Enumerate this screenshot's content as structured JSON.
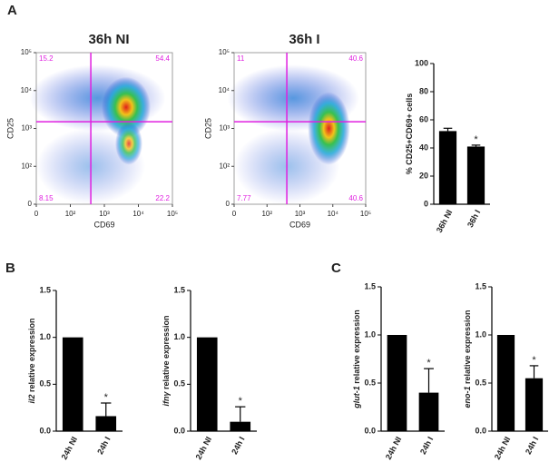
{
  "panel_labels": [
    "A",
    "B",
    "C"
  ],
  "chart_data": [
    {
      "type": "flow",
      "title": "36h NI",
      "xlabel": "CD69",
      "ylabel": "CD25",
      "xlim": [
        0,
        100000
      ],
      "ylim": [
        0,
        100000
      ],
      "xticks": [
        0,
        {
          "value": 100,
          "label": "10²"
        },
        {
          "value": 1000,
          "label": "10³"
        },
        {
          "value": 10000,
          "label": "10⁴"
        },
        {
          "value": 100000,
          "label": "10⁵"
        }
      ],
      "yticks": [
        0,
        {
          "value": 100,
          "label": "10²"
        },
        {
          "value": 1000,
          "label": "10³"
        },
        {
          "value": 10000,
          "label": "10⁴"
        },
        {
          "value": 100000,
          "label": "10⁵"
        }
      ],
      "gates": {
        "x": 400,
        "y": 1500
      },
      "quadrants": [
        15.2,
        54.4,
        8.15,
        22.2
      ],
      "color": "#e020e0"
    },
    {
      "type": "flow",
      "title": "36h  I",
      "xlabel": "CD69",
      "ylabel": "CD25",
      "xlim": [
        0,
        100000
      ],
      "ylim": [
        0,
        100000
      ],
      "xticks": [
        0,
        {
          "value": 100,
          "label": "10²"
        },
        {
          "value": 1000,
          "label": "10³"
        },
        {
          "value": 10000,
          "label": "10⁴"
        },
        {
          "value": 100000,
          "label": "10⁵"
        }
      ],
      "yticks": [
        0,
        {
          "value": 100,
          "label": "10²"
        },
        {
          "value": 1000,
          "label": "10³"
        },
        {
          "value": 10000,
          "label": "10⁴"
        },
        {
          "value": 100000,
          "label": "10⁵"
        }
      ],
      "gates": {
        "x": 400,
        "y": 1500
      },
      "quadrants": [
        11,
        40.6,
        7.77,
        40.6
      ],
      "color": "#e020e0"
    },
    {
      "type": "bar",
      "ylabel": "% CD25+CD69+ cells",
      "categories": [
        "36h NI",
        "36h I"
      ],
      "values": [
        52,
        41
      ],
      "errors": [
        2,
        1
      ],
      "ylim": [
        0,
        100
      ],
      "yticks": [
        0,
        20,
        40,
        60,
        80,
        100
      ],
      "annotation": "*",
      "color": "#000000"
    },
    {
      "type": "bar",
      "ylabel_gene": "il2",
      "ylabel": " relative expression",
      "categories": [
        "24h NI",
        "24h I"
      ],
      "values": [
        1,
        0.16
      ],
      "errors": [
        null,
        0.14
      ],
      "ylim": [
        0,
        1.5
      ],
      "yticks": [
        {
          "value": 0,
          "label": "0.0"
        },
        0.5,
        {
          "value": 1,
          "label": "1.0"
        },
        1.5
      ],
      "annotation": "*",
      "color": "#000000"
    },
    {
      "type": "bar",
      "ylabel_gene": "ifnγ",
      "ylabel": " relative expression",
      "categories": [
        "24h NI",
        "24h I"
      ],
      "values": [
        1,
        0.1
      ],
      "errors": [
        null,
        0.16
      ],
      "ylim": [
        0,
        1.5
      ],
      "yticks": [
        {
          "value": 0,
          "label": "0.0"
        },
        0.5,
        {
          "value": 1,
          "label": "1.0"
        },
        1.5
      ],
      "annotation": "*",
      "color": "#000000"
    },
    {
      "type": "bar",
      "ylabel_gene": "glut-1",
      "ylabel": " relative expression",
      "categories": [
        "24h NI",
        "24h I"
      ],
      "values": [
        1,
        0.4
      ],
      "errors": [
        null,
        0.25
      ],
      "ylim": [
        0,
        1.5
      ],
      "yticks": [
        {
          "value": 0,
          "label": "0.0"
        },
        0.5,
        {
          "value": 1,
          "label": "1.0"
        },
        1.5
      ],
      "annotation": "*",
      "color": "#000000"
    },
    {
      "type": "bar",
      "ylabel_gene": "eno-1",
      "ylabel": " relative expression",
      "categories": [
        "24h NI",
        "24h I"
      ],
      "values": [
        1,
        0.55
      ],
      "errors": [
        null,
        0.13
      ],
      "ylim": [
        0,
        1.5
      ],
      "yticks": [
        {
          "value": 0,
          "label": "0.0"
        },
        0.5,
        {
          "value": 1,
          "label": "1.0"
        },
        1.5
      ],
      "annotation": "*",
      "color": "#000000"
    }
  ]
}
